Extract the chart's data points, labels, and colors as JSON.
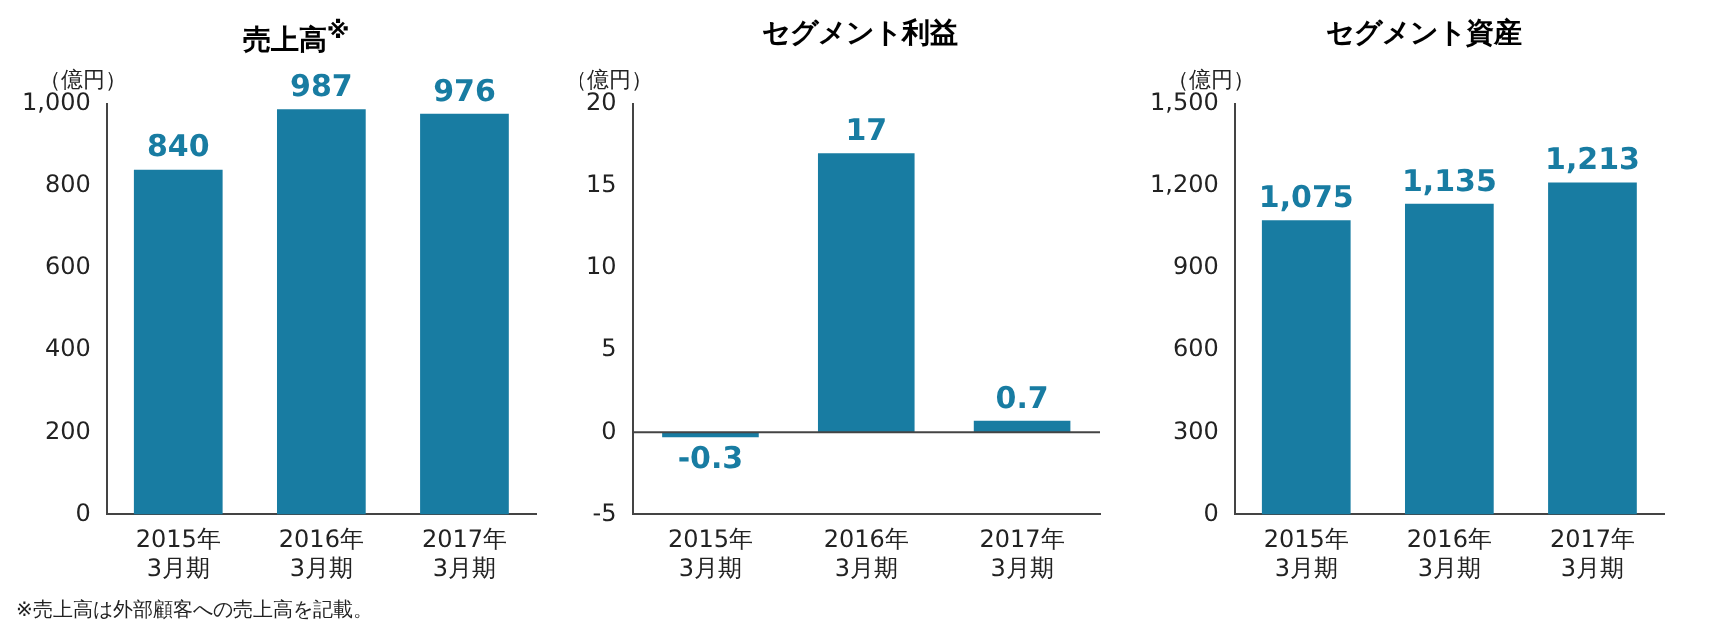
{
  "chart_data": [
    {
      "type": "bar",
      "title": "売上高$^{※}$",
      "ylabel": "（億円）",
      "categories": [
        "2015年\n3月期",
        "2016年\n3月期",
        "2017年\n3月期"
      ],
      "values": [
        840,
        987,
        976
      ],
      "color": "#187ca2",
      "ylim": [
        0,
        1000
      ],
      "yticks": [
        0,
        200,
        400,
        600,
        800,
        {
          "value": 1000,
          "label": "1,000"
        }
      ],
      "grid": false,
      "data_labels": true,
      "annotations": [
        "※売上高は外部顧客への売上高を記載。"
      ]
    },
    {
      "type": "bar",
      "title": "セグメント利益",
      "ylabel": "（億円）",
      "categories": [
        "2015年\n3月期",
        "2016年\n3月期",
        "2017年\n3月期"
      ],
      "values": [
        -0.3,
        17,
        0.7
      ],
      "color": "#187ca2",
      "ylim": [
        -5,
        20
      ],
      "yticks": [
        -5,
        0,
        5,
        10,
        15,
        20
      ],
      "grid": false,
      "data_labels": true,
      "ref_lines": [
        {
          "axis": "y",
          "value": 0,
          "color": "#444444"
        }
      ]
    },
    {
      "type": "bar",
      "title": "セグメント資産",
      "ylabel": "（億円）",
      "categories": [
        "2015年\n3月期",
        "2016年\n3月期",
        "2017年\n3月期"
      ],
      "values": [
        1075,
        1135,
        1213
      ],
      "color": "#187ca2",
      "ylim": [
        0,
        1500
      ],
      "yticks": [
        0,
        300,
        600,
        900,
        {
          "value": 1200,
          "label": "1,200"
        },
        {
          "value": 1500,
          "label": "1,500"
        }
      ],
      "grid": false,
      "value_labels": [
        "1,075",
        "1,135",
        "1,213"
      ]
    }
  ]
}
